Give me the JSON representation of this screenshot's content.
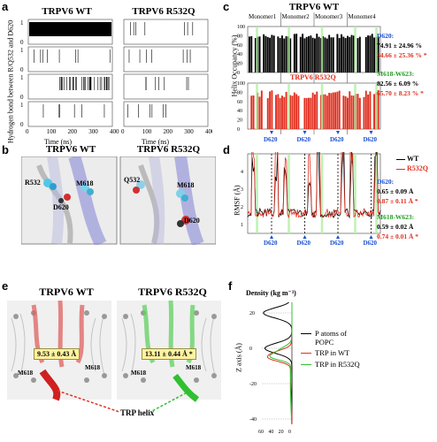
{
  "panel_letters": {
    "a": "a",
    "b": "b",
    "c": "c",
    "d": "d",
    "e": "e",
    "f": "f"
  },
  "panel_a": {
    "title_wt": "TRPV6 WT",
    "title_mut": "TRPV6 R532Q",
    "ylabel": "Hydrogen bond between R/Q532 and D620",
    "xlabel": "Time (ns)",
    "xticks": [
      "0",
      "100",
      "200",
      "300",
      "400"
    ],
    "yticks": [
      "0",
      "1"
    ]
  },
  "panel_b": {
    "title_wt": "TRPV6 WT",
    "title_mut": "TRPV6 R532Q",
    "wt_labels": [
      "R532",
      "M618",
      "D620"
    ],
    "mut_labels": [
      "Q532",
      "M618",
      "D620"
    ]
  },
  "panel_c": {
    "title": "TRPV6 WT",
    "monomers": [
      "Monomer1",
      "Monomer2",
      "Monomer3",
      "Monomer4"
    ],
    "mut_title": "TRPV6 R532Q",
    "ylabel": "Helix Occupancy (%)",
    "yticks": [
      "0",
      "20",
      "40",
      "60",
      "80",
      "100"
    ],
    "d620_ticks": [
      "D620",
      "D620",
      "D620",
      "D620"
    ],
    "stats": [
      {
        "label": "D620:",
        "wt": "74.91 ± 24.96 %",
        "mut": "34.66 ± 25.36 % *"
      },
      {
        "label": "M618-W623:",
        "wt": "82.56 ± 6.09 %",
        "mut": "65.70 ± 8.23 % *"
      }
    ]
  },
  "panel_d": {
    "legend_wt": "WT",
    "legend_mut": "R532Q",
    "ylabel": "RMSF (Å)",
    "yticks": [
      "1",
      "2",
      "3",
      "4"
    ],
    "d620_ticks": [
      "D620",
      "D620",
      "D620",
      "D620"
    ],
    "stats": [
      {
        "label": "D620:",
        "wt": "0.65 ± 0.09 Å",
        "mut": "0.87 ± 0.11 Å *"
      },
      {
        "label": "M618-W623:",
        "wt": "0.59 ± 0.02 Å",
        "mut": "0.74 ± 0.01 Å *"
      }
    ]
  },
  "panel_e": {
    "title_wt": "TRPV6 WT",
    "title_mut": "TRPV6 R532Q",
    "dist_wt": "9.53 ± 0.43 Å",
    "dist_mut": "13.11 ± 0.44 Å *",
    "wt_labels": [
      "M618",
      "M618"
    ],
    "mut_labels": [
      "M618",
      "M618"
    ],
    "trp_label": "TRP helix"
  },
  "panel_f": {
    "title": "Density (kg m⁻³)",
    "ylabel": "Z axis (Å)",
    "yticks": [
      "20",
      "0",
      "-20",
      "-40"
    ],
    "xticks": [
      "60",
      "40",
      "20",
      "0"
    ],
    "legend": [
      {
        "label": "P atoms of POPC",
        "color": "#000000"
      },
      {
        "label": "TRP in WT",
        "color": "#e03020"
      },
      {
        "label": "TRP in R532Q",
        "color": "#30c030"
      }
    ]
  },
  "colors": {
    "wt": "#000000",
    "mut": "#e03020",
    "green": "#30c030",
    "blue": "#1a4fd0",
    "highlight": "#b0f0a0"
  }
}
